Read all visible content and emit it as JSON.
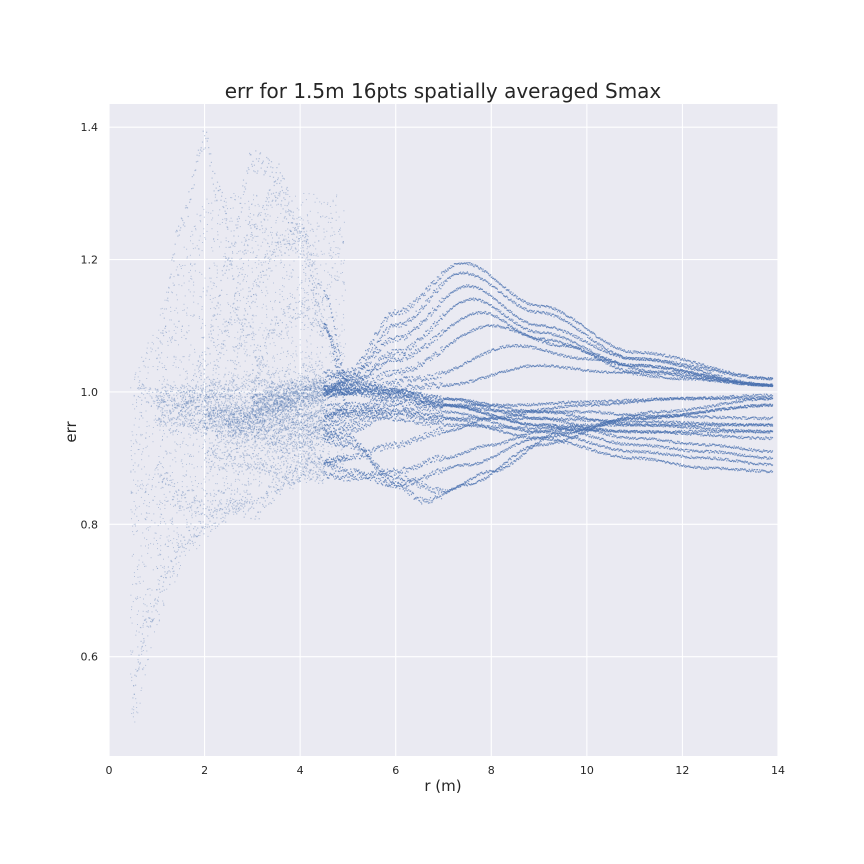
{
  "chart_data": {
    "type": "scatter",
    "title": "err for 1.5m 16pts spatially averaged Smax",
    "xlabel": "r (m)",
    "ylabel": "err",
    "xlim": [
      0,
      14
    ],
    "ylim": [
      0.45,
      1.435
    ],
    "xticks": [
      "0",
      "2",
      "4",
      "6",
      "8",
      "10",
      "12",
      "14"
    ],
    "yticks": [
      "0.6",
      "0.8",
      "1.0",
      "1.2",
      "1.4"
    ],
    "grid": true,
    "legend": "none",
    "x_data_range": [
      0.45,
      13.9
    ],
    "series": [
      {
        "color": "#4c72b0",
        "curves": [
          {
            "x": [
              0.6,
              1.0,
              2.0,
              3.0,
              4.0,
              5.0,
              6.0,
              7.5,
              9.0,
              11.0,
              13.9
            ],
            "y": [
              1.0,
              0.99,
              0.96,
              0.94,
              0.91,
              0.88,
              0.86,
              0.89,
              0.93,
              0.96,
              0.98
            ]
          },
          {
            "x": [
              2.5,
              3.5,
              4.2,
              5.0,
              6.0,
              7.4,
              9.0,
              11.0,
              13.9
            ],
            "y": [
              0.95,
              0.98,
              1.01,
              1.03,
              1.12,
              1.195,
              1.13,
              1.06,
              1.02
            ]
          },
          {
            "x": [
              2.5,
              3.5,
              4.5,
              5.0,
              6.0,
              7.4,
              9.0,
              11.0,
              13.9
            ],
            "y": [
              0.95,
              0.98,
              1.0,
              1.02,
              1.1,
              1.18,
              1.12,
              1.05,
              1.02
            ]
          },
          {
            "x": [
              2.5,
              3.5,
              4.5,
              5.0,
              6.0,
              7.5,
              9.0,
              11.0,
              13.9
            ],
            "y": [
              0.96,
              0.98,
              1.0,
              1.02,
              1.08,
              1.16,
              1.1,
              1.05,
              1.01
            ]
          },
          {
            "x": [
              3.0,
              4.0,
              5.0,
              6.0,
              7.6,
              9.0,
              11.0,
              13.9
            ],
            "y": [
              0.98,
              1.0,
              1.01,
              1.06,
              1.14,
              1.09,
              1.04,
              1.01
            ]
          },
          {
            "x": [
              3.0,
              4.0,
              5.0,
              6.0,
              7.8,
              9.0,
              11.0,
              13.9
            ],
            "y": [
              0.98,
              1.0,
              1.01,
              1.05,
              1.12,
              1.08,
              1.04,
              1.01
            ]
          },
          {
            "x": [
              3.0,
              4.0,
              5.0,
              6.0,
              8.0,
              9.5,
              11.0,
              13.9
            ],
            "y": [
              0.98,
              1.0,
              1.0,
              1.03,
              1.1,
              1.07,
              1.03,
              1.01
            ]
          },
          {
            "x": [
              3.0,
              4.0,
              5.0,
              6.5,
              8.5,
              10.0,
              11.5,
              13.9
            ],
            "y": [
              0.98,
              1.0,
              1.0,
              1.02,
              1.07,
              1.05,
              1.03,
              1.01
            ]
          },
          {
            "x": [
              3.0,
              4.0,
              5.0,
              7.0,
              9.0,
              10.5,
              12.0,
              13.9
            ],
            "y": [
              0.98,
              0.99,
              1.0,
              1.01,
              1.04,
              1.03,
              1.02,
              1.01
            ]
          },
          {
            "x": [
              3.5,
              5.0,
              6.0,
              6.6,
              7.5,
              9.0,
              11.0,
              13.9
            ],
            "y": [
              0.97,
              0.93,
              0.86,
              0.835,
              0.86,
              0.92,
              0.96,
              0.98
            ]
          },
          {
            "x": [
              3.5,
              5.0,
              6.0,
              7.0,
              8.0,
              9.5,
              11.5,
              13.9
            ],
            "y": [
              0.96,
              0.92,
              0.87,
              0.85,
              0.88,
              0.94,
              0.97,
              0.99
            ]
          },
          {
            "x": [
              2.0,
              3.0,
              4.0,
              5.0,
              6.0,
              7.0,
              9.0,
              11.0,
              12.5,
              13.9
            ],
            "y": [
              0.95,
              0.93,
              0.92,
              0.94,
              0.97,
              0.96,
              0.93,
              0.9,
              0.885,
              0.88
            ]
          },
          {
            "x": [
              2.0,
              3.0,
              4.0,
              5.0,
              6.0,
              7.0,
              9.0,
              11.0,
              12.5,
              13.9
            ],
            "y": [
              0.96,
              0.94,
              0.93,
              0.95,
              0.98,
              0.97,
              0.94,
              0.91,
              0.9,
              0.89
            ]
          },
          {
            "x": [
              2.0,
              3.0,
              4.0,
              5.0,
              6.0,
              7.0,
              9.0,
              11.0,
              12.5,
              13.9
            ],
            "y": [
              0.97,
              0.95,
              0.94,
              0.96,
              0.99,
              0.98,
              0.95,
              0.92,
              0.91,
              0.9
            ]
          },
          {
            "x": [
              2.0,
              3.0,
              4.0,
              5.0,
              6.0,
              7.0,
              9.0,
              11.0,
              12.5,
              13.9
            ],
            "y": [
              0.98,
              0.96,
              0.95,
              0.97,
              1.0,
              0.99,
              0.96,
              0.93,
              0.92,
              0.91
            ]
          },
          {
            "x": [
              1.0,
              2.0,
              3.0,
              4.0,
              5.0,
              6.0,
              7.0,
              9.0,
              11.0,
              13.9
            ],
            "y": [
              0.99,
              0.98,
              0.97,
              0.98,
              1.0,
              1.0,
              0.98,
              0.95,
              0.94,
              0.93
            ]
          },
          {
            "x": [
              1.0,
              2.0,
              3.0,
              4.0,
              5.0,
              6.0,
              7.0,
              9.0,
              11.0,
              13.9
            ],
            "y": [
              1.0,
              0.99,
              0.98,
              0.99,
              1.01,
              1.0,
              0.99,
              0.97,
              0.95,
              0.94
            ]
          },
          {
            "x": [
              1.0,
              2.0,
              3.0,
              4.0,
              5.0,
              6.0,
              7.0,
              9.0,
              11.0,
              13.9
            ],
            "y": [
              0.97,
              0.96,
              0.96,
              0.97,
              0.98,
              0.97,
              0.96,
              0.96,
              0.955,
              0.95
            ]
          },
          {
            "x": [
              1.0,
              2.0,
              3.0,
              4.0,
              5.0,
              6.0,
              7.0,
              9.0,
              11.0,
              13.9
            ],
            "y": [
              0.96,
              0.95,
              0.95,
              0.96,
              0.97,
              0.96,
              0.95,
              0.945,
              0.94,
              0.94
            ]
          },
          {
            "x": [
              2.0,
              3.0,
              4.0,
              5.0,
              6.0,
              7.0,
              8.0,
              9.0,
              10.0,
              11.0,
              13.9
            ],
            "y": [
              0.9,
              0.89,
              0.88,
              0.87,
              0.88,
              0.9,
              0.92,
              0.94,
              0.95,
              0.95,
              0.95
            ]
          },
          {
            "x": [
              2.0,
              3.0,
              4.0,
              5.0,
              6.0,
              7.0,
              8.0,
              9.0,
              10.0,
              11.0,
              13.9
            ],
            "y": [
              0.92,
              0.9,
              0.89,
              0.9,
              0.92,
              0.94,
              0.96,
              0.97,
              0.97,
              0.965,
              0.96
            ]
          },
          {
            "x": [
              1.5,
              2.5,
              3.5,
              4.5,
              5.0,
              6.0,
              7.0,
              8.5,
              10.0,
              12.0,
              13.9
            ],
            "y": [
              1.0,
              1.01,
              1.02,
              1.03,
              1.02,
              1.0,
              0.98,
              0.97,
              0.98,
              0.99,
              0.99
            ]
          },
          {
            "x": [
              1.5,
              2.5,
              3.5,
              4.5,
              5.0,
              6.0,
              7.0,
              8.5,
              10.0,
              12.0,
              13.9
            ],
            "y": [
              0.99,
              1.0,
              1.0,
              1.01,
              1.0,
              0.99,
              0.98,
              0.98,
              0.985,
              0.99,
              0.995
            ]
          },
          {
            "x": [
              1.5,
              2.0,
              2.5,
              3.0,
              3.5,
              4.0,
              4.5,
              5.0
            ],
            "y": [
              0.96,
              1.05,
              1.2,
              1.35,
              1.33,
              1.25,
              1.1,
              0.98
            ]
          },
          {
            "x": [
              2.0,
              2.5,
              3.0,
              3.5,
              4.0,
              4.5,
              5.0
            ],
            "y": [
              0.97,
              1.1,
              1.25,
              1.3,
              1.22,
              1.1,
              1.0
            ]
          },
          {
            "x": [
              2.5,
              3.0,
              3.5,
              4.0,
              4.5,
              5.0
            ],
            "y": [
              1.0,
              1.15,
              1.22,
              1.24,
              1.15,
              1.02
            ]
          },
          {
            "x": [
              3.0,
              3.5,
              4.0,
              4.5,
              5.0
            ],
            "y": [
              1.02,
              1.1,
              1.13,
              1.1,
              1.02
            ]
          },
          {
            "x": [
              1.0,
              1.5,
              2.0,
              2.3,
              2.8,
              3.5,
              4.0,
              5.0
            ],
            "y": [
              1.05,
              1.25,
              1.38,
              1.3,
              1.1,
              1.0,
              0.95,
              0.97
            ]
          },
          {
            "x": [
              1.0,
              1.5,
              2.0,
              2.5,
              3.0,
              3.5,
              4.0,
              5.0
            ],
            "y": [
              0.88,
              0.84,
              0.83,
              0.84,
              0.82,
              0.85,
              0.88,
              0.9
            ]
          },
          {
            "x": [
              0.5,
              0.8,
              1.2,
              1.6,
              2.0,
              2.5,
              3.0
            ],
            "y": [
              0.55,
              0.65,
              0.72,
              0.78,
              0.8,
              0.82,
              0.85
            ]
          }
        ]
      }
    ]
  }
}
